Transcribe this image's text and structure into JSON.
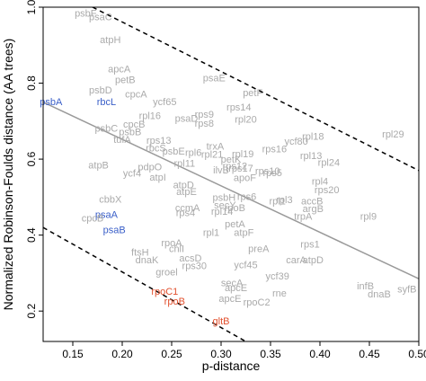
{
  "chart_data": {
    "type": "scatter",
    "title": "",
    "xlabel": "p-distance",
    "ylabel": "Normalized Robinson-Foulds distance (AA trees)",
    "xlim": [
      0.12,
      0.5
    ],
    "ylim": [
      0.12,
      1.0
    ],
    "xticks": [
      {
        "value": 0.15,
        "label": "0.15"
      },
      {
        "value": 0.2,
        "label": "0.20"
      },
      {
        "value": 0.25,
        "label": "0.25"
      },
      {
        "value": 0.3,
        "label": "0.30"
      },
      {
        "value": 0.35,
        "label": "0.35"
      },
      {
        "value": 0.4,
        "label": "0.40"
      },
      {
        "value": 0.45,
        "label": "0.45"
      },
      {
        "value": 0.5,
        "label": "0.50"
      }
    ],
    "yticks": [
      {
        "value": 0.2,
        "label": "0.2"
      },
      {
        "value": 0.4,
        "label": "0.4"
      },
      {
        "value": 0.6,
        "label": "0.6"
      },
      {
        "value": 0.8,
        "label": "0.8"
      },
      {
        "value": 1.0,
        "label": "1.0"
      }
    ],
    "grid": false,
    "colors": {
      "gray": "#aaaaaa",
      "blue": "#3a5fc8",
      "red": "#e2502e",
      "fit": "#999999",
      "axis": "#000000"
    },
    "fit_line": {
      "x": [
        0.12,
        0.5
      ],
      "y": [
        0.75,
        0.285
      ]
    },
    "envelope_upper": {
      "x": [
        0.17,
        0.5
      ],
      "y": [
        1.0,
        0.57
      ]
    },
    "envelope_lower": {
      "x": [
        0.12,
        0.325
      ],
      "y": [
        0.42,
        0.12
      ]
    },
    "points": [
      {
        "label": "psbF",
        "x": 0.163,
        "y": 0.985,
        "color": "gray"
      },
      {
        "label": "psaC",
        "x": 0.178,
        "y": 0.975,
        "color": "gray"
      },
      {
        "label": "atpH",
        "x": 0.188,
        "y": 0.915,
        "color": "gray"
      },
      {
        "label": "apcA",
        "x": 0.197,
        "y": 0.838,
        "color": "gray"
      },
      {
        "label": "petB",
        "x": 0.203,
        "y": 0.81,
        "color": "gray"
      },
      {
        "label": "psbD",
        "x": 0.178,
        "y": 0.782,
        "color": "gray"
      },
      {
        "label": "cpcA",
        "x": 0.214,
        "y": 0.772,
        "color": "gray"
      },
      {
        "label": "psbA",
        "x": 0.128,
        "y": 0.752,
        "color": "blue"
      },
      {
        "label": "rbcL",
        "x": 0.184,
        "y": 0.752,
        "color": "blue"
      },
      {
        "label": "psaE",
        "x": 0.293,
        "y": 0.814,
        "color": "gray"
      },
      {
        "label": "ycf65",
        "x": 0.243,
        "y": 0.752,
        "color": "gray"
      },
      {
        "label": "petF",
        "x": 0.332,
        "y": 0.775,
        "color": "gray"
      },
      {
        "label": "rps14",
        "x": 0.318,
        "y": 0.738,
        "color": "gray"
      },
      {
        "label": "rps9",
        "x": 0.283,
        "y": 0.718,
        "color": "gray"
      },
      {
        "label": "rpl16",
        "x": 0.228,
        "y": 0.715,
        "color": "gray"
      },
      {
        "label": "psaD",
        "x": 0.265,
        "y": 0.708,
        "color": "gray"
      },
      {
        "label": "rpl20",
        "x": 0.325,
        "y": 0.705,
        "color": "gray"
      },
      {
        "label": "rps8",
        "x": 0.283,
        "y": 0.695,
        "color": "gray"
      },
      {
        "label": "cpcB",
        "x": 0.212,
        "y": 0.692,
        "color": "gray"
      },
      {
        "label": "psbC",
        "x": 0.184,
        "y": 0.682,
        "color": "gray"
      },
      {
        "label": "psbB",
        "x": 0.208,
        "y": 0.672,
        "color": "gray"
      },
      {
        "label": "tufA",
        "x": 0.2,
        "y": 0.652,
        "color": "gray"
      },
      {
        "label": "rps13",
        "x": 0.237,
        "y": 0.65,
        "color": "gray"
      },
      {
        "label": "rpl18",
        "x": 0.393,
        "y": 0.66,
        "color": "gray"
      },
      {
        "label": "ycf80",
        "x": 0.376,
        "y": 0.648,
        "color": "gray"
      },
      {
        "label": "rbcS",
        "x": 0.234,
        "y": 0.63,
        "color": "gray"
      },
      {
        "label": "psbE",
        "x": 0.252,
        "y": 0.622,
        "color": "gray"
      },
      {
        "label": "trxA",
        "x": 0.294,
        "y": 0.635,
        "color": "gray"
      },
      {
        "label": "rps16",
        "x": 0.354,
        "y": 0.628,
        "color": "gray"
      },
      {
        "label": "rpl6",
        "x": 0.272,
        "y": 0.618,
        "color": "gray"
      },
      {
        "label": "rpl21",
        "x": 0.291,
        "y": 0.613,
        "color": "gray"
      },
      {
        "label": "rpl19",
        "x": 0.322,
        "y": 0.615,
        "color": "gray"
      },
      {
        "label": "petK",
        "x": 0.31,
        "y": 0.6,
        "color": "gray"
      },
      {
        "label": "rpl13",
        "x": 0.391,
        "y": 0.61,
        "color": "gray"
      },
      {
        "label": "rpl11",
        "x": 0.263,
        "y": 0.59,
        "color": "gray"
      },
      {
        "label": "rps12",
        "x": 0.314,
        "y": 0.582,
        "color": "gray"
      },
      {
        "label": "rpl24",
        "x": 0.409,
        "y": 0.592,
        "color": "gray"
      },
      {
        "label": "rpl29",
        "x": 0.474,
        "y": 0.666,
        "color": "gray"
      },
      {
        "label": "atpB",
        "x": 0.176,
        "y": 0.585,
        "color": "gray"
      },
      {
        "label": "pdpO",
        "x": 0.228,
        "y": 0.58,
        "color": "gray"
      },
      {
        "label": "ycf4",
        "x": 0.21,
        "y": 0.563,
        "color": "gray"
      },
      {
        "label": "rps17",
        "x": 0.32,
        "y": 0.577,
        "color": "gray"
      },
      {
        "label": "ilvB",
        "x": 0.3,
        "y": 0.572,
        "color": "gray"
      },
      {
        "label": "rps5",
        "x": 0.352,
        "y": 0.565,
        "color": "gray"
      },
      {
        "label": "rps10",
        "x": 0.347,
        "y": 0.57,
        "color": "gray"
      },
      {
        "label": "atpI",
        "x": 0.236,
        "y": 0.553,
        "color": "gray"
      },
      {
        "label": "apoF",
        "x": 0.324,
        "y": 0.552,
        "color": "gray"
      },
      {
        "label": "atpD",
        "x": 0.262,
        "y": 0.533,
        "color": "gray"
      },
      {
        "label": "atpE",
        "x": 0.265,
        "y": 0.515,
        "color": "gray"
      },
      {
        "label": "rpl4",
        "x": 0.4,
        "y": 0.542,
        "color": "gray"
      },
      {
        "label": "rps20",
        "x": 0.407,
        "y": 0.52,
        "color": "gray"
      },
      {
        "label": "cbbX",
        "x": 0.188,
        "y": 0.495,
        "color": "gray"
      },
      {
        "label": "psbH",
        "x": 0.303,
        "y": 0.5,
        "color": "gray"
      },
      {
        "label": "rps6",
        "x": 0.326,
        "y": 0.502,
        "color": "gray"
      },
      {
        "label": "rpl3",
        "x": 0.364,
        "y": 0.494,
        "color": "gray"
      },
      {
        "label": "rpl1",
        "x": 0.357,
        "y": 0.49,
        "color": "gray"
      },
      {
        "label": "secY",
        "x": 0.304,
        "y": 0.48,
        "color": "gray"
      },
      {
        "label": "accB",
        "x": 0.392,
        "y": 0.49,
        "color": "gray"
      },
      {
        "label": "ccmA",
        "x": 0.266,
        "y": 0.472,
        "color": "gray"
      },
      {
        "label": "rps4",
        "x": 0.264,
        "y": 0.46,
        "color": "gray"
      },
      {
        "label": "rpl14",
        "x": 0.301,
        "y": 0.463,
        "color": "gray"
      },
      {
        "label": "rpoB",
        "x": 0.314,
        "y": 0.472,
        "color": "gray"
      },
      {
        "label": "argB",
        "x": 0.393,
        "y": 0.47,
        "color": "gray"
      },
      {
        "label": "trpA",
        "x": 0.383,
        "y": 0.45,
        "color": "gray"
      },
      {
        "label": "psaA",
        "x": 0.184,
        "y": 0.455,
        "color": "blue"
      },
      {
        "label": "cpcB",
        "x": 0.17,
        "y": 0.445,
        "color": "gray"
      },
      {
        "label": "psaB",
        "x": 0.192,
        "y": 0.415,
        "color": "blue"
      },
      {
        "label": "petA",
        "x": 0.314,
        "y": 0.43,
        "color": "gray"
      },
      {
        "label": "rpl1",
        "x": 0.29,
        "y": 0.408,
        "color": "gray"
      },
      {
        "label": "atpF",
        "x": 0.323,
        "y": 0.408,
        "color": "gray"
      },
      {
        "label": "rpl9",
        "x": 0.449,
        "y": 0.45,
        "color": "gray"
      },
      {
        "label": "rpoA",
        "x": 0.25,
        "y": 0.38,
        "color": "gray"
      },
      {
        "label": "chlI",
        "x": 0.255,
        "y": 0.365,
        "color": "gray"
      },
      {
        "label": "ftsH",
        "x": 0.218,
        "y": 0.355,
        "color": "gray"
      },
      {
        "label": "dnaK",
        "x": 0.225,
        "y": 0.335,
        "color": "gray"
      },
      {
        "label": "preA",
        "x": 0.338,
        "y": 0.365,
        "color": "gray"
      },
      {
        "label": "rps1",
        "x": 0.39,
        "y": 0.377,
        "color": "gray"
      },
      {
        "label": "carA",
        "x": 0.376,
        "y": 0.335,
        "color": "gray"
      },
      {
        "label": "atpD",
        "x": 0.393,
        "y": 0.335,
        "color": "gray"
      },
      {
        "label": "acsD",
        "x": 0.269,
        "y": 0.34,
        "color": "gray"
      },
      {
        "label": "ycf45",
        "x": 0.325,
        "y": 0.322,
        "color": "gray"
      },
      {
        "label": "rps30",
        "x": 0.273,
        "y": 0.32,
        "color": "gray"
      },
      {
        "label": "groel",
        "x": 0.245,
        "y": 0.303,
        "color": "gray"
      },
      {
        "label": "ycf39",
        "x": 0.357,
        "y": 0.293,
        "color": "gray"
      },
      {
        "label": "secA",
        "x": 0.311,
        "y": 0.275,
        "color": "gray"
      },
      {
        "label": "apcE",
        "x": 0.315,
        "y": 0.262,
        "color": "gray"
      },
      {
        "label": "rne",
        "x": 0.359,
        "y": 0.248,
        "color": "gray"
      },
      {
        "label": "infB",
        "x": 0.446,
        "y": 0.267,
        "color": "gray"
      },
      {
        "label": "dnaB",
        "x": 0.46,
        "y": 0.245,
        "color": "gray"
      },
      {
        "label": "syfB",
        "x": 0.488,
        "y": 0.258,
        "color": "gray"
      },
      {
        "label": "apcE",
        "x": 0.309,
        "y": 0.233,
        "color": "gray"
      },
      {
        "label": "rpoC2",
        "x": 0.336,
        "y": 0.224,
        "color": "gray"
      },
      {
        "label": "rpoC1",
        "x": 0.243,
        "y": 0.253,
        "color": "red"
      },
      {
        "label": "rpoB",
        "x": 0.253,
        "y": 0.227,
        "color": "red"
      },
      {
        "label": "gltB",
        "x": 0.3,
        "y": 0.175,
        "color": "red"
      }
    ]
  }
}
